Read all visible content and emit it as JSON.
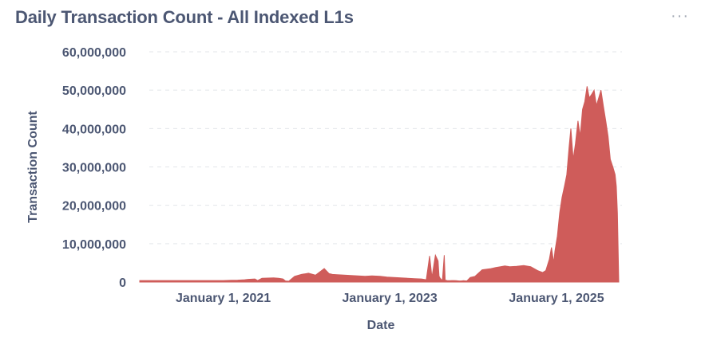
{
  "header": {
    "title": "Daily Transaction Count - All Indexed L1s",
    "menu_icon": "more-horizontal-icon",
    "menu_glyph": "···"
  },
  "colors": {
    "series": "#cf5c5a",
    "grid": "#e3e6ea",
    "text": "#4c5773"
  },
  "chart_data": {
    "type": "area",
    "xlabel": "Date",
    "ylabel": "Transaction Count",
    "xlim": [
      "2020-01-01",
      "2025-10-15"
    ],
    "ylim": [
      0,
      60000000
    ],
    "yticks": [
      0,
      10000000,
      20000000,
      30000000,
      40000000,
      50000000,
      60000000
    ],
    "ytick_labels": [
      "0",
      "10,000,000",
      "20,000,000",
      "30,000,000",
      "40,000,000",
      "50,000,000",
      "60,000,000"
    ],
    "xticks": [
      "2021-01-01",
      "2023-01-01",
      "2025-01-01"
    ],
    "xtick_labels": [
      "January 1, 2021",
      "January 1, 2023",
      "January 1, 2025"
    ],
    "grid": true,
    "legend": "none",
    "series": [
      {
        "x": [
          "2020-01-01",
          "2020-06-01",
          "2021-01-01",
          "2021-06-01",
          "2021-02-05",
          "2021-03-05",
          "2021-04-05",
          "2021-04-20",
          "2021-05-20",
          "2021-06-20",
          "2021-08-10",
          "2021-09-01",
          "2021-09-20",
          "2021-10-01",
          "2021-10-08",
          "2021-10-15",
          "2021-11-10",
          "2021-12-10",
          "2022-01-10",
          "2022-02-10",
          "2022-03-20",
          "2022-04-10",
          "2022-04-25",
          "2022-05-15",
          "2022-06-15",
          "2022-07-15",
          "2022-08-15",
          "2022-09-15",
          "2022-10-15",
          "2022-11-20",
          "2022-12-20",
          "2023-01-20",
          "2023-02-20",
          "2023-03-20",
          "2023-04-20",
          "2023-05-20",
          "2023-06-10",
          "2023-06-25",
          "2023-07-05",
          "2023-07-20",
          "2023-08-01",
          "2023-08-05",
          "2023-08-10",
          "2023-08-20",
          "2023-08-28",
          "2023-09-01",
          "2023-09-10",
          "2023-09-20",
          "2023-10-01",
          "2023-10-10",
          "2023-10-20",
          "2023-11-01",
          "2023-11-10",
          "2023-11-20",
          "2023-12-05",
          "2023-12-20",
          "2024-01-10",
          "2024-02-10",
          "2024-03-20",
          "2024-04-10",
          "2024-05-01",
          "2024-05-20",
          "2024-06-10",
          "2024-07-10",
          "2024-08-10",
          "2024-09-10",
          "2024-10-10",
          "2024-11-01",
          "2024-11-15",
          "2024-12-01",
          "2024-12-10",
          "2024-12-20",
          "2024-12-25",
          "2025-01-05",
          "2025-01-15",
          "2025-01-25",
          "2025-02-05",
          "2025-02-15",
          "2025-02-25",
          "2025-03-05",
          "2025-03-15",
          "2025-03-25",
          "2025-04-05",
          "2025-04-15",
          "2025-04-25",
          "2025-05-05",
          "2025-05-15",
          "2025-05-25",
          "2025-06-05",
          "2025-06-15",
          "2025-06-25",
          "2025-07-05",
          "2025-07-15",
          "2025-07-25",
          "2025-08-05",
          "2025-08-15",
          "2025-08-25",
          "2025-09-05",
          "2025-09-15",
          "2025-09-20",
          "2025-09-25",
          "2025-10-01"
        ],
        "y": [
          400000,
          400000,
          400000,
          400000,
          450000,
          500000,
          600000,
          700000,
          800000,
          1000000,
          1100000,
          1000000,
          800000,
          300000,
          250000,
          200000,
          1500000,
          2000000,
          2300000,
          1800000,
          3500000,
          2200000,
          2000000,
          1900000,
          1800000,
          1700000,
          1600000,
          1500000,
          1600000,
          1500000,
          1300000,
          1200000,
          1100000,
          1000000,
          900000,
          800000,
          600000,
          6800000,
          1200000,
          7000000,
          5500000,
          1500000,
          1000000,
          400000,
          7000000,
          500000,
          400000,
          350000,
          400000,
          400000,
          350000,
          300000,
          300000,
          350000,
          300000,
          1200000,
          1500000,
          3200000,
          3500000,
          3800000,
          4000000,
          4200000,
          4000000,
          4100000,
          4300000,
          4000000,
          3000000,
          2500000,
          3000000,
          6000000,
          9000000,
          5000000,
          8000000,
          12000000,
          18000000,
          22000000,
          25000000,
          28000000,
          35000000,
          40000000,
          32000000,
          36000000,
          42000000,
          38000000,
          45000000,
          47000000,
          51000000,
          48000000,
          49000000,
          50000000,
          46000000,
          48000000,
          50000000,
          46000000,
          42000000,
          38000000,
          32000000,
          30000000,
          28000000,
          25000000,
          18000000,
          0
        ]
      }
    ]
  }
}
